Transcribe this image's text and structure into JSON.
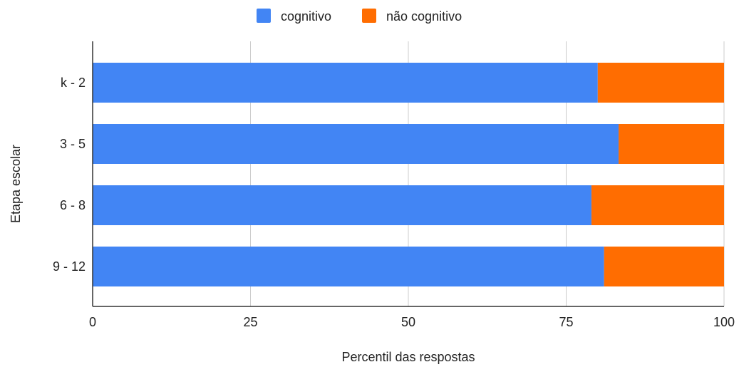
{
  "chart_data": {
    "type": "bar",
    "orientation": "horizontal",
    "stacked": true,
    "title": "",
    "xlabel": "Percentil das respostas",
    "ylabel": "Etapa escolar",
    "xlim": [
      0,
      100
    ],
    "x_ticks": [
      0,
      25,
      50,
      75,
      100
    ],
    "grid": true,
    "legend_position": "top-center",
    "categories": [
      "k - 2",
      "3 - 5",
      "6 - 8",
      "9 - 12"
    ],
    "series": [
      {
        "name": "cognitivo",
        "color": "#4285f4",
        "values": [
          80,
          83.3,
          79,
          81
        ]
      },
      {
        "name": "não cognitivo",
        "color": "#ff6d01",
        "values": [
          20,
          16.7,
          21,
          19
        ]
      }
    ]
  }
}
